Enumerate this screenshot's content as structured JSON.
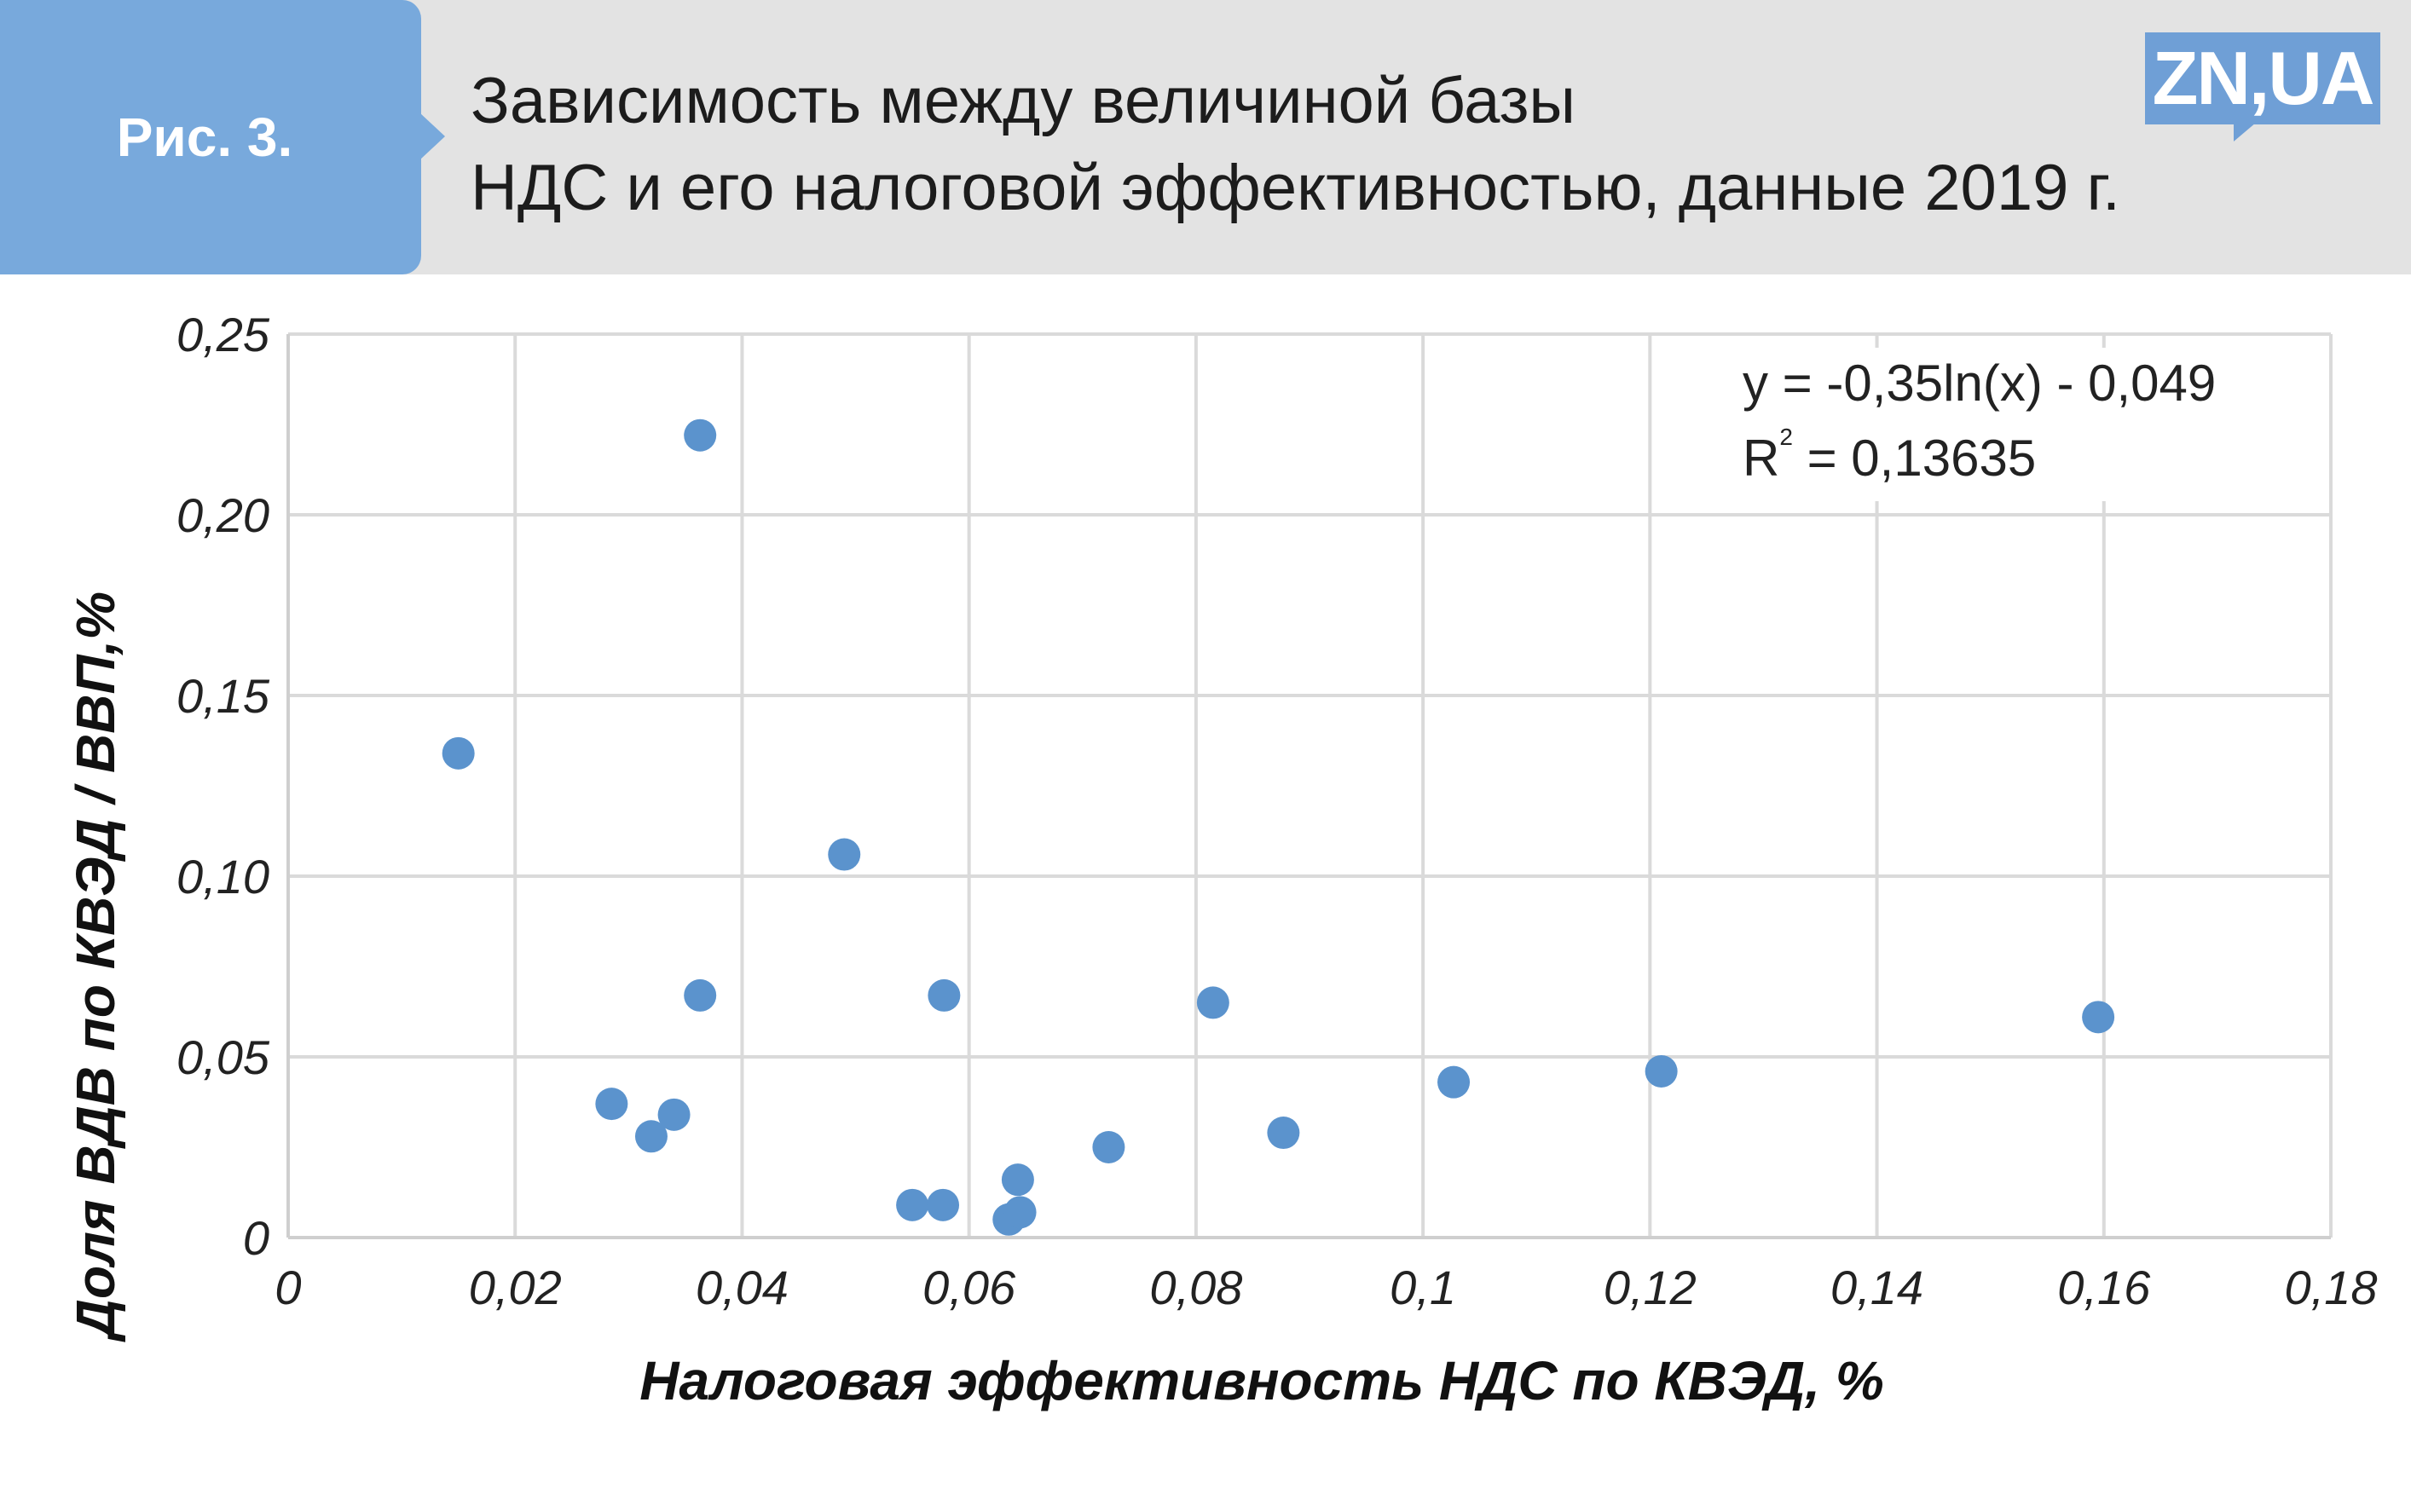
{
  "header": {
    "figure_label": "Рис. 3.",
    "title_line1": "Зависимость между величиной базы",
    "title_line2": "НДС и его налоговой эффективностью, данные 2019 г.",
    "logo_text": "ZN,UA"
  },
  "colors": {
    "header_bg": "#e3e3e3",
    "accent": "#78a9dc",
    "point": "#5b93cd",
    "trend": "#6f9fd6",
    "grid": "#dadada"
  },
  "chart_data": {
    "type": "scatter",
    "xlabel": "Налоговая эффективность НДС по КВЭД, %",
    "ylabel": "Доля ВДВ по КВЭД / ВВП,%",
    "xlim": [
      0,
      0.18
    ],
    "ylim": [
      0,
      0.25
    ],
    "x_ticks": [
      "0",
      "0,02",
      "0,04",
      "0,06",
      "0,08",
      "0,1",
      "0,12",
      "0,14",
      "0,16",
      "0,18"
    ],
    "y_ticks": [
      "0",
      "0,05",
      "0,10",
      "0,15",
      "0,20",
      "0,25"
    ],
    "grid": true,
    "points": [
      {
        "x": 0.015,
        "y": 0.134
      },
      {
        "x": 0.0363,
        "y": 0.222
      },
      {
        "x": 0.0363,
        "y": 0.067
      },
      {
        "x": 0.049,
        "y": 0.106
      },
      {
        "x": 0.0285,
        "y": 0.037
      },
      {
        "x": 0.032,
        "y": 0.028
      },
      {
        "x": 0.034,
        "y": 0.034
      },
      {
        "x": 0.055,
        "y": 0.009
      },
      {
        "x": 0.0577,
        "y": 0.009
      },
      {
        "x": 0.0578,
        "y": 0.067
      },
      {
        "x": 0.0635,
        "y": 0.005
      },
      {
        "x": 0.0643,
        "y": 0.016
      },
      {
        "x": 0.0645,
        "y": 0.007
      },
      {
        "x": 0.0723,
        "y": 0.025
      },
      {
        "x": 0.0815,
        "y": 0.065
      },
      {
        "x": 0.0877,
        "y": 0.029
      },
      {
        "x": 0.1027,
        "y": 0.043
      },
      {
        "x": 0.121,
        "y": 0.046
      },
      {
        "x": 0.1595,
        "y": 0.061
      }
    ],
    "trendline": {
      "type": "logarithmic",
      "a": -0.35,
      "b": -0.049,
      "x_range": [
        0.015,
        0.1595
      ],
      "equation": "y = -0,35ln(x) - 0,049",
      "r2_prefix": "R",
      "r2_sup": "2",
      "r2_value": " = 0,13635"
    }
  }
}
